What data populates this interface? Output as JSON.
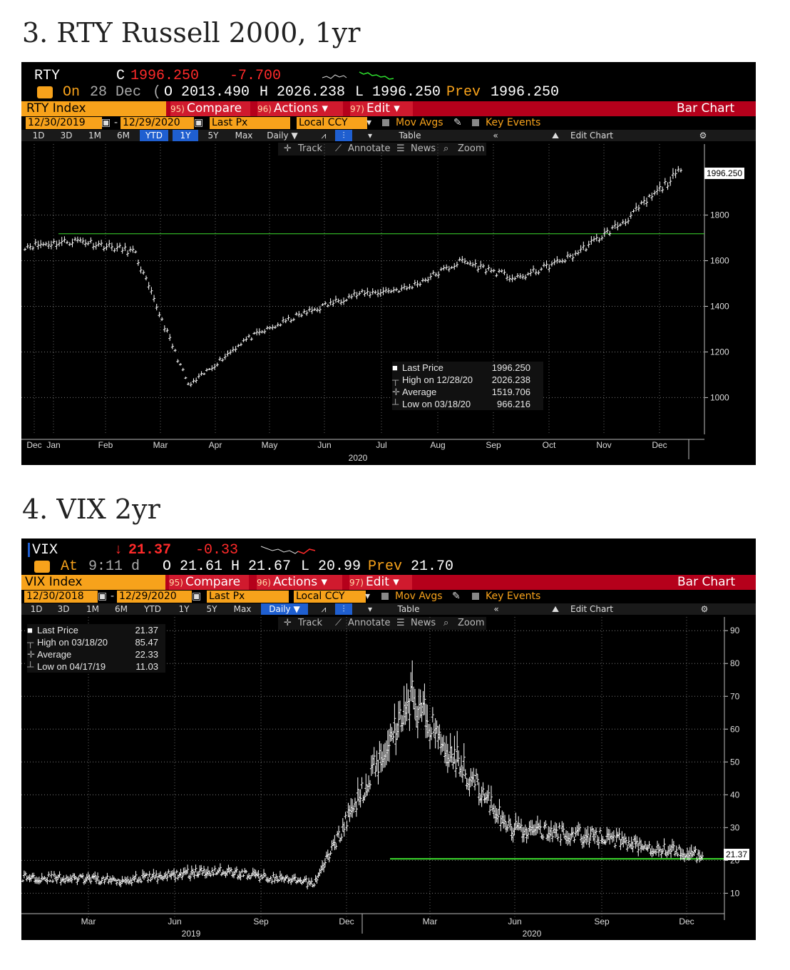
{
  "sections": [
    {
      "title": "3. RTY Russell 2000, 1yr",
      "ticker": "RTY",
      "price_prefix": "C",
      "last_price": "1996.250",
      "change": "-7.700",
      "status": "On",
      "date_text": "28 Dec",
      "quote_line": "O 2013.490 H 2026.238 L 1996.250 Prev 1996.250",
      "quote_open": "O 2013.490",
      "quote_high": "H 2026.238",
      "quote_low": "L 1996.250",
      "quote_prev_label": "Prev",
      "quote_prev": "1996.250",
      "index_name": "RTY Index",
      "compare_num": "95)",
      "compare_label": "Compare",
      "actions_num": "96)",
      "actions_label": "Actions",
      "edit_num": "97)",
      "edit_label": "Edit",
      "bar_chart_label": "Bar Chart",
      "start_date": "12/30/2019",
      "end_date": "12/29/2020",
      "last_px": "Last Px",
      "ccy": "Local CCY",
      "mov_avgs": "Mov Avgs",
      "key_events": "Key Events",
      "periods": [
        "1D",
        "3D",
        "1M",
        "6M",
        "YTD",
        "1Y",
        "5Y",
        "Max"
      ],
      "active_periods": [
        "YTD",
        "1Y"
      ],
      "frequency": "Daily",
      "table_label": "Table",
      "edit_chart_label": "Edit Chart",
      "tools": [
        "Track",
        "Annotate",
        "News",
        "Zoom"
      ],
      "legend": [
        {
          "label": "Last Price",
          "value": "1996.250"
        },
        {
          "label": "High on 12/28/20",
          "value": "2026.238"
        },
        {
          "label": "Average",
          "value": "1519.706"
        },
        {
          "label": "Low on 03/18/20",
          "value": "966.216"
        }
      ],
      "price_tag": "1996.250",
      "year_label": "2020",
      "colors": {
        "bars": "#ffffff",
        "reference_line": "#3ddc2e",
        "background": "#000000"
      }
    },
    {
      "title": "4. VIX 2yr",
      "ticker": "VIX",
      "price_prefix": "↓",
      "last_price": "21.37",
      "change": "-0.33",
      "status": "At",
      "date_text": "9:11 d",
      "quote_open": "O 21.61",
      "quote_high": "H 21.67",
      "quote_low": "L 20.99",
      "quote_prev_label": "Prev",
      "quote_prev": "21.70",
      "index_name": "VIX Index",
      "compare_num": "95)",
      "compare_label": "Compare",
      "actions_num": "96)",
      "actions_label": "Actions",
      "edit_num": "97)",
      "edit_label": "Edit",
      "bar_chart_label": "Bar Chart",
      "start_date": "12/30/2018",
      "end_date": "12/29/2020",
      "last_px": "Last Px",
      "ccy": "Local CCY",
      "mov_avgs": "Mov Avgs",
      "key_events": "Key Events",
      "periods": [
        "1D",
        "3D",
        "1M",
        "6M",
        "YTD",
        "1Y",
        "5Y",
        "Max"
      ],
      "active_periods": [],
      "frequency": "Daily",
      "table_label": "Table",
      "edit_chart_label": "Edit Chart",
      "tools": [
        "Track",
        "Annotate",
        "News",
        "Zoom"
      ],
      "legend": [
        {
          "label": "Last Price",
          "value": "21.37"
        },
        {
          "label": "High on 03/18/20",
          "value": "85.47"
        },
        {
          "label": "Average",
          "value": "22.33"
        },
        {
          "label": "Low on 04/17/19",
          "value": "11.03"
        }
      ],
      "price_tag": "21.37",
      "year_labels": [
        "2019",
        "2020"
      ],
      "colors": {
        "bars": "#ffffff",
        "reference_line": "#3ddc2e",
        "background": "#000000"
      }
    }
  ],
  "chart_data": [
    {
      "type": "line",
      "title": "RTY Russell 2000, 1yr",
      "xlabel": "2020",
      "ylabel": "",
      "x": [
        "Dec",
        "Jan",
        "Feb",
        "Mar",
        "Apr",
        "May",
        "Jun",
        "Jul",
        "Aug",
        "Sep",
        "Oct",
        "Nov",
        "Dec"
      ],
      "series": [
        {
          "name": "Last Price",
          "values": [
            1665,
            1690,
            1640,
            1050,
            1250,
            1360,
            1450,
            1480,
            1600,
            1520,
            1620,
            1780,
            1996.25
          ]
        }
      ],
      "reference_line": 1718,
      "yticks": [
        1000,
        1200,
        1400,
        1600,
        1800
      ],
      "ylim": [
        870,
        2080
      ],
      "grid": true,
      "legend_position": "bottom-center"
    },
    {
      "type": "line",
      "title": "VIX 2yr",
      "xlabel": "",
      "ylabel": "",
      "x": [
        "Mar",
        "Jun",
        "Sep",
        "Dec",
        "Mar",
        "Jun",
        "Sep",
        "Dec"
      ],
      "x_years": [
        "2019",
        "2020"
      ],
      "series": [
        {
          "name": "Last Price",
          "values": [
            15,
            14,
            17,
            13,
            70,
            30,
            27,
            21.37
          ]
        }
      ],
      "reference_line": 20.5,
      "yticks": [
        10,
        20,
        30,
        40,
        50,
        60,
        70,
        80,
        90
      ],
      "ylim": [
        4,
        92
      ],
      "grid": true,
      "legend_position": "top-left"
    }
  ]
}
